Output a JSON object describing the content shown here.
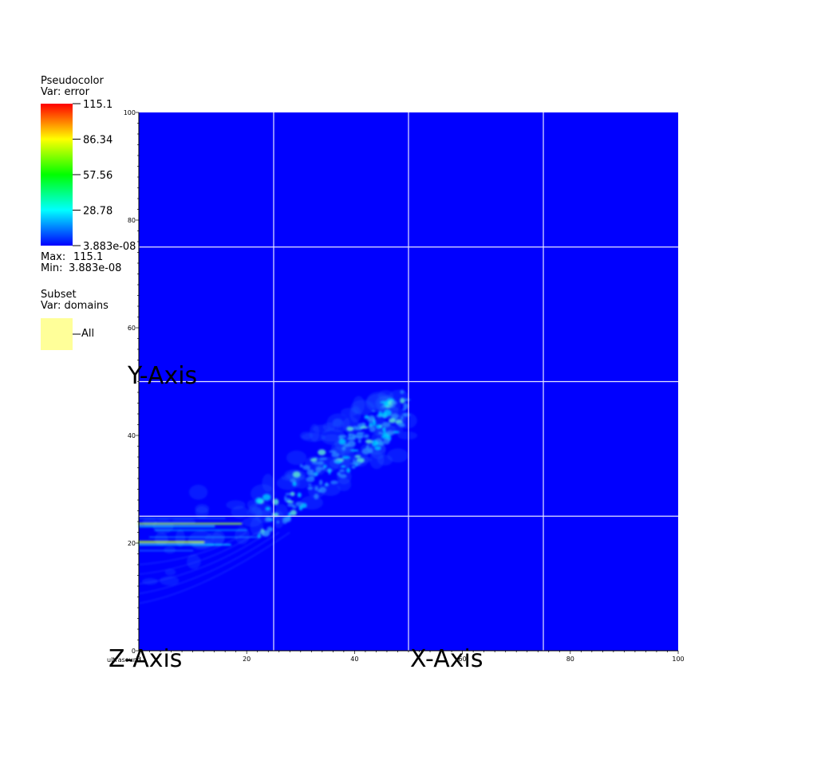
{
  "legend": {
    "pseudocolor": {
      "title": "Pseudocolor",
      "var_label": "Var: error",
      "max_label": "Max:",
      "max_value": "115.1",
      "min_label": "Min:",
      "min_value": "3.883e-08",
      "ticks": [
        "115.1",
        "86.34",
        "57.56",
        "28.78",
        "3.883e-08"
      ],
      "tick_values": [
        115.1,
        86.34,
        57.56,
        28.78,
        3.883e-08
      ],
      "colormap": [
        "#ff0000",
        "#ffff00",
        "#00ff00",
        "#00ffff",
        "#0000ff"
      ]
    },
    "subset": {
      "title": "Subset",
      "var_label": "Var: domains",
      "entry": "All",
      "swatch_color": "#ffff99"
    }
  },
  "chart_data": {
    "type": "heatmap",
    "xlabel": "X-Axis",
    "ylabel": "Y-Axis",
    "zlabel": "Z-Axis",
    "xlim": [
      0,
      100
    ],
    "ylim": [
      0,
      100
    ],
    "x_ticks": [
      "0",
      "20",
      "40",
      "60",
      "80",
      "100"
    ],
    "x_tick_values": [
      0,
      20,
      40,
      60,
      80,
      100
    ],
    "y_ticks": [
      "0",
      "20",
      "40",
      "60",
      "80",
      "100"
    ],
    "y_tick_values": [
      0,
      20,
      40,
      60,
      80,
      100
    ],
    "grid_lines": [
      25,
      50,
      75
    ],
    "grid": true,
    "background_color": "#0000ff",
    "grid_color": "#e6e6ff",
    "units_label": "ultrasound",
    "value_range": [
      3.883e-08,
      115.1
    ]
  }
}
